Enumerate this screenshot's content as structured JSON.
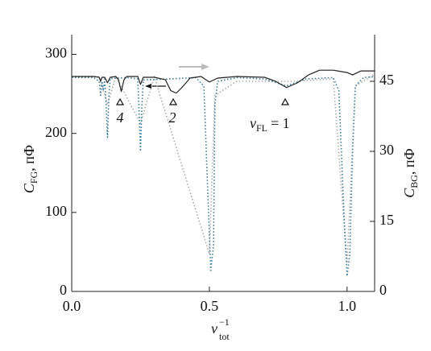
{
  "chart_data": {
    "type": "line",
    "xlabel": {
      "symbol": "ν",
      "sup": "−1",
      "sub": "tot"
    },
    "ylabel": {
      "symbol": "C",
      "sub": "FG",
      "unit": ", пФ"
    },
    "y2label": {
      "symbol": "C",
      "sub": "BG",
      "unit": ", пФ"
    },
    "annotations": [
      {
        "text": "4"
      },
      {
        "text": "2"
      },
      {
        "symbol": "ν",
        "sub": "FL",
        "text": "= 1"
      }
    ],
    "xlim": [
      0,
      1.1
    ],
    "xticks": [
      {
        "value": 0,
        "label": "0.0"
      },
      {
        "value": 0.5,
        "label": "0.5"
      },
      {
        "value": 1,
        "label": "1.0"
      }
    ],
    "ylim": [
      0,
      325
    ],
    "yticks": [
      0,
      100,
      200,
      300
    ],
    "y2lim": [
      0,
      55
    ],
    "y2ticks": [
      0,
      15,
      30,
      45
    ],
    "grid": false,
    "series": [
      {
        "color": "#aaaaaa",
        "dash": "1.5 2.5",
        "axis": "y2",
        "x": [
          0,
          0.1,
          0.13,
          0.16,
          0.25,
          0.3,
          0.5,
          0.52,
          0.6,
          0.8,
          0.95,
          1.0,
          1.03,
          1.1
        ],
        "values": [
          46,
          46,
          40,
          46,
          36,
          46,
          8,
          42,
          45,
          45,
          45.5,
          6,
          44,
          46.5
        ]
      },
      {
        "color": "#3a7a9a",
        "dash": "1.5 2.5",
        "axis": "y2",
        "x": [
          0,
          0.08,
          0.1,
          0.105,
          0.11,
          0.115,
          0.12,
          0.125,
          0.13,
          0.135,
          0.14,
          0.2,
          0.24,
          0.245,
          0.25,
          0.255,
          0.26,
          0.35,
          0.45,
          0.48,
          0.495,
          0.505,
          0.515,
          0.52,
          0.53,
          0.6,
          0.7,
          0.78,
          0.85,
          0.95,
          0.97,
          0.99,
          1.0,
          1.01,
          1.02,
          1.03,
          1.06,
          1.1
        ],
        "values": [
          45.8,
          45.8,
          45,
          42,
          45,
          43,
          45.5,
          40,
          33,
          42,
          45.6,
          45.8,
          45.5,
          38,
          30,
          40,
          45.3,
          45.5,
          45.8,
          44,
          20,
          4.5,
          10,
          40,
          45,
          45.8,
          45.5,
          44,
          45.5,
          45.8,
          43,
          15,
          3.3,
          8,
          30,
          44,
          45.8,
          46
        ]
      },
      {
        "color": "#222222",
        "dash": "",
        "axis": "y",
        "x": [
          0,
          0.08,
          0.1,
          0.105,
          0.11,
          0.12,
          0.13,
          0.14,
          0.16,
          0.17,
          0.18,
          0.19,
          0.2,
          0.24,
          0.25,
          0.26,
          0.3,
          0.34,
          0.36,
          0.38,
          0.4,
          0.43,
          0.47,
          0.5,
          0.53,
          0.6,
          0.7,
          0.74,
          0.78,
          0.82,
          0.86,
          0.9,
          0.95,
          1.0,
          1.02,
          1.05,
          1.1
        ],
        "values": [
          272,
          272,
          271,
          266,
          271,
          271,
          264,
          271,
          272,
          268,
          253,
          268,
          272,
          272,
          262,
          271,
          271,
          268,
          254,
          251,
          258,
          270,
          272,
          265,
          270,
          272,
          271,
          266,
          258,
          264,
          274,
          280,
          280,
          277,
          274,
          279,
          279
        ]
      }
    ]
  }
}
